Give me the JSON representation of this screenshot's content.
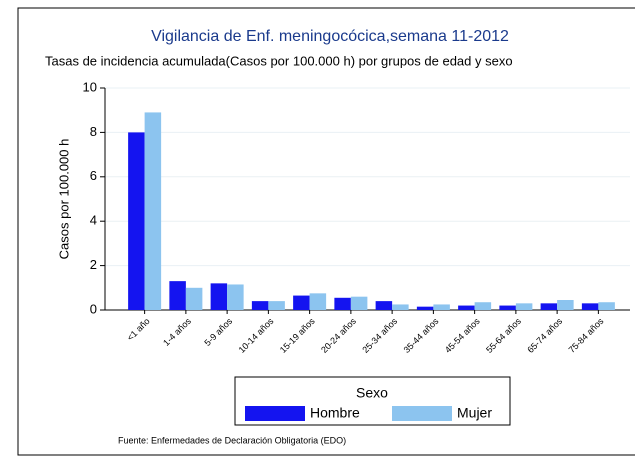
{
  "chart_data": {
    "type": "bar",
    "title": "Vigilancia de Enf. meningocócica,semana 11-2012",
    "subtitle": "Tasas de incidencia acumulada(Casos por 100.000 h) por grupos de edad y sexo",
    "y_label": "Casos por 100.000 h",
    "categories": [
      "<1 año",
      "1-4 años",
      "5-9 años",
      "10-14 años",
      "15-19 años",
      "20-24 años",
      "25-34 años",
      "35-44 años",
      "45-54 años",
      "55-64 años",
      "65-74 años",
      "75-84 años"
    ],
    "series": [
      {
        "name": "Hombre",
        "color": "#1414f0",
        "values": [
          8.0,
          1.3,
          1.2,
          0.4,
          0.65,
          0.55,
          0.4,
          0.15,
          0.2,
          0.2,
          0.3,
          0.3
        ]
      },
      {
        "name": "Mujer",
        "color": "#8cc4ef",
        "values": [
          8.9,
          1.0,
          1.15,
          0.4,
          0.75,
          0.6,
          0.25,
          0.25,
          0.35,
          0.3,
          0.45,
          0.35
        ]
      }
    ],
    "ylim": [
      0,
      10
    ],
    "yticks": [
      0,
      2,
      4,
      6,
      8,
      10
    ],
    "grid": true,
    "legend_title": "Sexo",
    "legend_position": "bottom",
    "source": "Fuente: Enfermedades de Declaración Obligatoria (EDO)"
  }
}
